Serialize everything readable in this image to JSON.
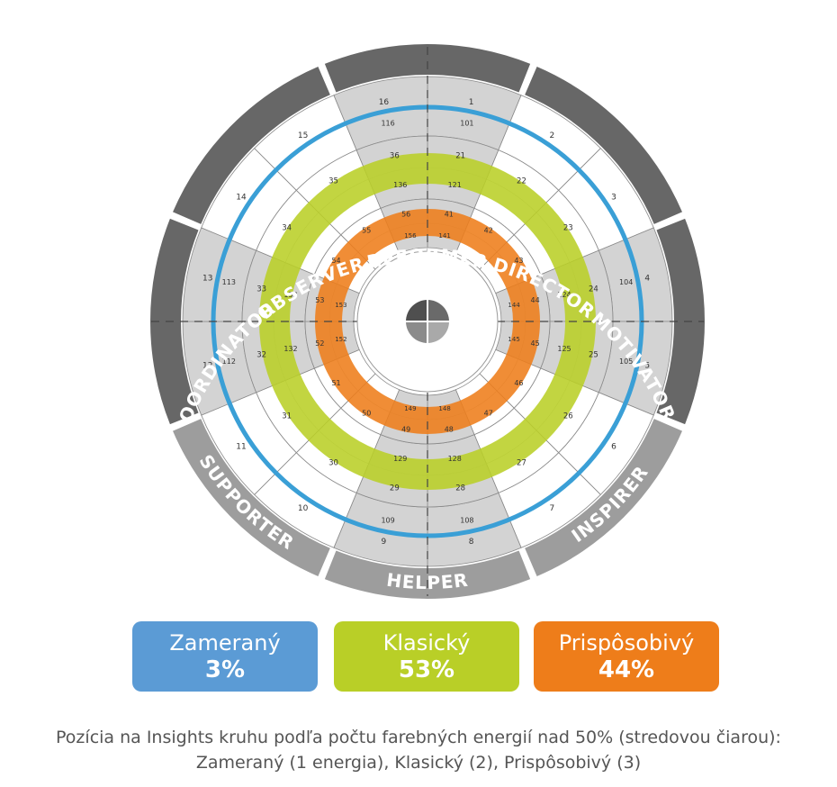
{
  "wheel": {
    "segments": [
      {
        "label": "REFORMER",
        "shade": "dark"
      },
      {
        "label": "DIRECTOR",
        "shade": "dark"
      },
      {
        "label": "MOTIVATOR",
        "shade": "dark"
      },
      {
        "label": "INSPIRER",
        "shade": "light"
      },
      {
        "label": "HELPER",
        "shade": "light"
      },
      {
        "label": "SUPPORTER",
        "shade": "light"
      },
      {
        "label": "COORDINATOR",
        "shade": "dark"
      },
      {
        "label": "OBSERVER",
        "shade": "dark"
      }
    ],
    "ring_outer": [
      "1",
      "2",
      "3",
      "4",
      "5",
      "6",
      "7",
      "8",
      "9",
      "10",
      "11",
      "12",
      "13",
      "14",
      "15",
      "16"
    ],
    "ring_outer_secondary": [
      "101",
      "",
      "",
      "104",
      "105",
      "",
      "",
      "108",
      "109",
      "",
      "",
      "112",
      "113",
      "",
      "",
      "116"
    ],
    "ring_middle": [
      "21",
      "22",
      "23",
      "24",
      "25",
      "26",
      "27",
      "28",
      "29",
      "30",
      "31",
      "32",
      "33",
      "34",
      "35",
      "36"
    ],
    "ring_middle_secondary": [
      "121",
      "",
      "",
      "124",
      "125",
      "",
      "",
      "128",
      "129",
      "",
      "",
      "132",
      "133",
      "",
      "",
      "136"
    ],
    "ring_inner": [
      "41",
      "42",
      "43",
      "44",
      "45",
      "46",
      "47",
      "48",
      "49",
      "50",
      "51",
      "52",
      "53",
      "54",
      "55",
      "56"
    ],
    "ring_inner_secondary": [
      "141",
      "",
      "",
      "144",
      "145",
      "",
      "",
      "148",
      "149",
      "",
      "",
      "152",
      "153",
      "",
      "",
      "156"
    ],
    "bands": [
      {
        "name": "Zameraný",
        "color": "#3a9fd6"
      },
      {
        "name": "Klasický",
        "color": "#b9cf27"
      },
      {
        "name": "Prispôsobivý",
        "color": "#ee7d1a"
      }
    ]
  },
  "legend": [
    {
      "name": "Zameraný",
      "pct": "3%",
      "color": "#5b9bd5"
    },
    {
      "name": "Klasický",
      "pct": "53%",
      "color": "#b9cf27"
    },
    {
      "name": "Prispôsobivý",
      "pct": "44%",
      "color": "#ee7d1a"
    }
  ],
  "caption": {
    "line1": "Pozícia na Insights kruhu podľa počtu farebných energií nad 50% (stredovou čiarou):",
    "line2": "Zameraný (1 energia), Klasický (2), Prispôsobivý (3)"
  }
}
